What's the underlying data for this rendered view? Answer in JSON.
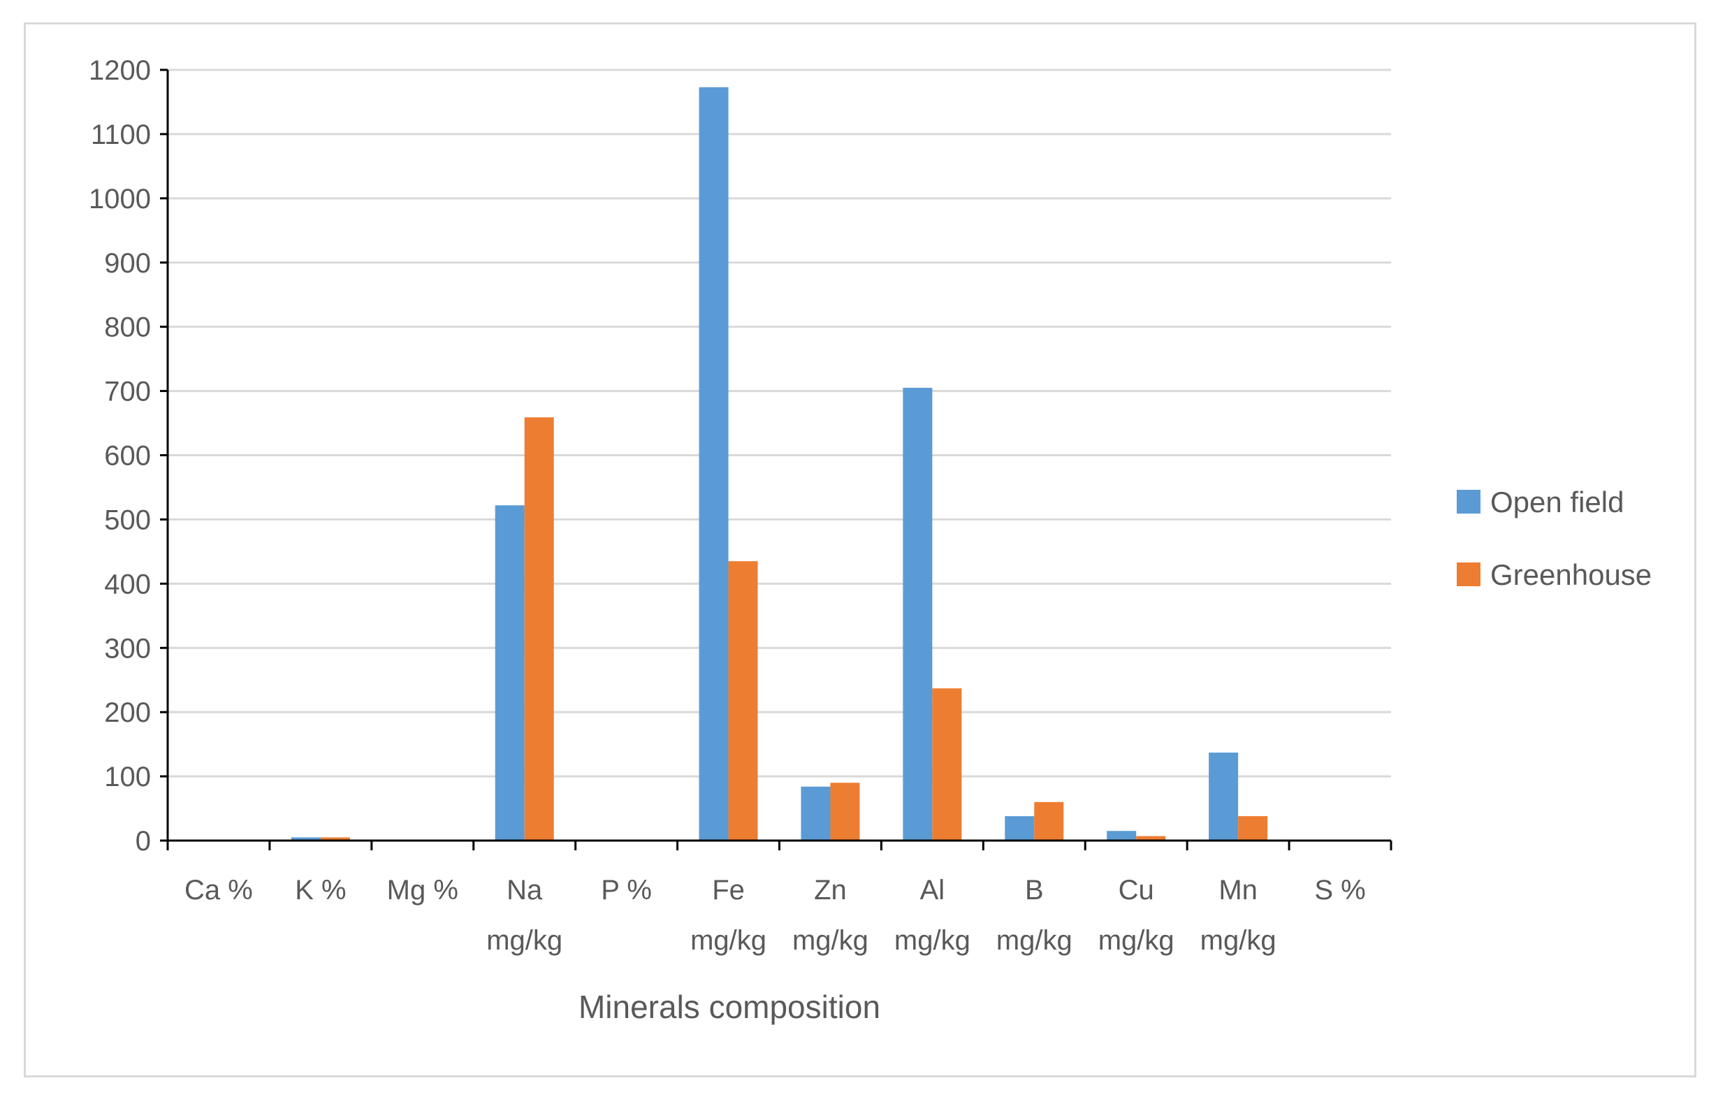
{
  "chart_data": {
    "type": "bar",
    "xlabel": "Minerals composition",
    "ylabel": "",
    "ylim": [
      0,
      1200
    ],
    "yticks": [
      0,
      100,
      200,
      300,
      400,
      500,
      600,
      700,
      800,
      900,
      1000,
      1100,
      1200
    ],
    "grid": true,
    "legend_position": "right",
    "categories": [
      [
        "Ca %"
      ],
      [
        "K %"
      ],
      [
        "Mg %"
      ],
      [
        "Na",
        "mg/kg"
      ],
      [
        "P %"
      ],
      [
        "Fe",
        "mg/kg"
      ],
      [
        "Zn",
        "mg/kg"
      ],
      [
        "Al",
        "mg/kg"
      ],
      [
        "B",
        "mg/kg"
      ],
      [
        "Cu",
        "mg/kg"
      ],
      [
        "Mn",
        "mg/kg"
      ],
      [
        "S %"
      ]
    ],
    "series": [
      {
        "name": "Open field",
        "color": "#5b9bd5",
        "values": [
          1,
          5,
          0.5,
          522,
          0.3,
          1173,
          84,
          705,
          38,
          15,
          137,
          0.3
        ]
      },
      {
        "name": "Greenhouse",
        "color": "#ed7d31",
        "values": [
          1,
          5,
          0.5,
          659,
          0.3,
          435,
          90,
          237,
          60,
          7,
          38,
          0.3
        ]
      }
    ]
  }
}
